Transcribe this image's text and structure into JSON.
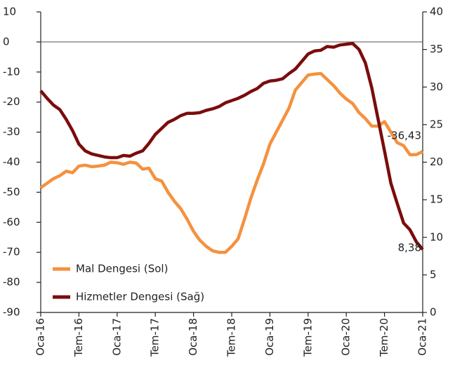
{
  "chart_data": {
    "type": "line",
    "categories": [
      "Oca-16",
      null,
      null,
      null,
      null,
      null,
      "Tem-16",
      null,
      null,
      null,
      null,
      null,
      "Oca-17",
      null,
      null,
      null,
      null,
      null,
      "Tem-17",
      null,
      null,
      null,
      null,
      null,
      "Oca-18",
      null,
      null,
      null,
      null,
      null,
      "Tem-18",
      null,
      null,
      null,
      null,
      null,
      "Oca-19",
      null,
      null,
      null,
      null,
      null,
      "Tem-19",
      null,
      null,
      null,
      null,
      null,
      "Oca-20",
      null,
      null,
      null,
      null,
      null,
      "Tem-20",
      null,
      null,
      null,
      null,
      null,
      "Oca-21"
    ],
    "series": [
      {
        "name": "Mal Dengesi (Sol)",
        "color": "#f5913e",
        "axis": "y",
        "values": [
          -48.5,
          -47,
          -45.5,
          -44.5,
          -43,
          -43.5,
          -41.3,
          -41,
          -41.5,
          -41.3,
          -41,
          -40,
          -40.2,
          -40.7,
          -40,
          -40.3,
          -42.3,
          -42,
          -45.5,
          -46.3,
          -50,
          -53,
          -55.5,
          -59,
          -63,
          -66,
          -68,
          -69.5,
          -70,
          -70,
          -68,
          -65.5,
          -59,
          -52,
          -46,
          -40.5,
          -34,
          -30,
          -26,
          -22,
          -16,
          -13.5,
          -11,
          -10.7,
          -10.5,
          -12.5,
          -14.5,
          -17,
          -19,
          -20.5,
          -23.5,
          -25.5,
          -28,
          -28,
          -26.5,
          -30,
          -33.5,
          -34.5,
          -37.5,
          -37.5,
          -36.43
        ],
        "value_labels": [
          null,
          null,
          null,
          null,
          null,
          null,
          null,
          null,
          null,
          null,
          null,
          null,
          null,
          null,
          null,
          null,
          null,
          null,
          null,
          null,
          null,
          null,
          null,
          null,
          null,
          null,
          null,
          null,
          null,
          null,
          null,
          null,
          null,
          null,
          null,
          null,
          null,
          null,
          null,
          null,
          null,
          null,
          null,
          null,
          null,
          null,
          null,
          null,
          null,
          null,
          null,
          null,
          null,
          null,
          null,
          null,
          null,
          null,
          null,
          null,
          "-36,43"
        ]
      },
      {
        "name": "Hizmetler Dengesi (Sağ)",
        "color": "#7b0c0c",
        "axis": "y2",
        "values": [
          29.5,
          28.5,
          27.6,
          27,
          25.7,
          24.2,
          22.4,
          21.5,
          21.1,
          20.9,
          20.7,
          20.6,
          20.6,
          20.9,
          20.8,
          21.2,
          21.5,
          22.5,
          23.7,
          24.5,
          25.3,
          25.7,
          26.2,
          26.5,
          26.5,
          26.6,
          26.9,
          27.1,
          27.4,
          27.9,
          28.2,
          28.5,
          28.9,
          29.4,
          29.8,
          30.5,
          30.8,
          30.9,
          31.1,
          31.8,
          32.4,
          33.4,
          34.4,
          34.8,
          34.9,
          35.4,
          35.3,
          35.6,
          35.7,
          35.8,
          35,
          33.2,
          29.9,
          25.7,
          21.5,
          17.2,
          14.5,
          11.9,
          11,
          9.4,
          8.38
        ],
        "value_labels": [
          null,
          null,
          null,
          null,
          null,
          null,
          null,
          null,
          null,
          null,
          null,
          null,
          null,
          null,
          null,
          null,
          null,
          null,
          null,
          null,
          null,
          null,
          null,
          null,
          null,
          null,
          null,
          null,
          null,
          null,
          null,
          null,
          null,
          null,
          null,
          null,
          null,
          null,
          null,
          null,
          null,
          null,
          null,
          null,
          null,
          null,
          null,
          null,
          null,
          null,
          null,
          null,
          null,
          null,
          null,
          null,
          null,
          null,
          null,
          null,
          "8,38"
        ]
      }
    ],
    "ylim": [
      -90,
      10
    ],
    "yticks": [
      -90,
      -80,
      -70,
      -60,
      -50,
      -40,
      -30,
      -20,
      -10,
      0,
      10
    ],
    "y2lim": [
      0,
      40
    ],
    "y2ticks": [
      0,
      5,
      10,
      15,
      20,
      25,
      30,
      35,
      40
    ],
    "grid": false,
    "legend": "lower left"
  }
}
